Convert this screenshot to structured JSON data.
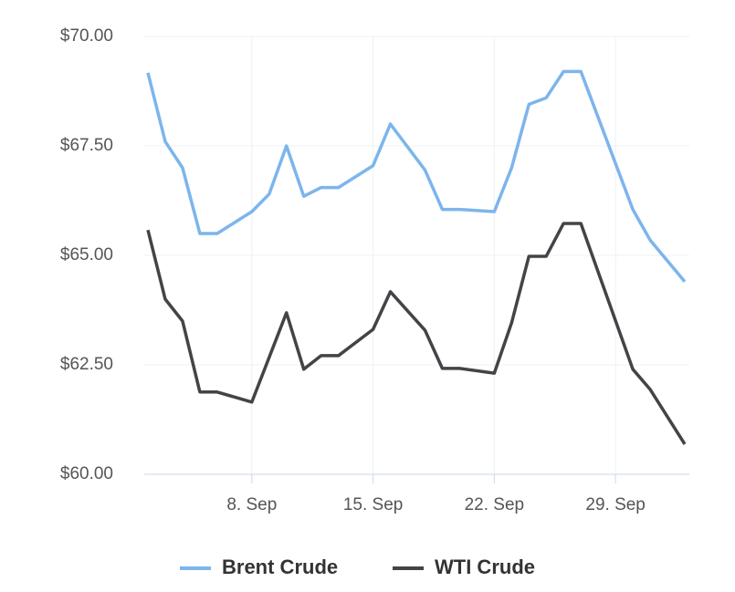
{
  "chart_data": {
    "type": "line",
    "x": [
      "2. Sep",
      "3. Sep",
      "4. Sep",
      "5. Sep",
      "6. Sep",
      "8. Sep",
      "9. Sep",
      "10. Sep",
      "11. Sep",
      "12. Sep",
      "13. Sep",
      "15. Sep",
      "16. Sep",
      "18. Sep",
      "19. Sep",
      "20. Sep",
      "22. Sep",
      "23. Sep",
      "24. Sep",
      "25. Sep",
      "26. Sep",
      "27. Sep",
      "30. Sep",
      "1. Oct",
      "3. Oct"
    ],
    "series": [
      {
        "name": "Brent Crude",
        "color": "#7cb5ec",
        "values": [
          69.17,
          67.6,
          67.0,
          65.5,
          65.5,
          66.0,
          66.4,
          67.5,
          66.35,
          66.55,
          66.55,
          67.05,
          68.0,
          66.95,
          66.05,
          66.05,
          66.0,
          67.0,
          68.45,
          68.6,
          69.2,
          69.2,
          66.05,
          65.35,
          64.4
        ]
      },
      {
        "name": "WTI Crude",
        "color": "#434348",
        "values": [
          65.58,
          64.0,
          63.5,
          61.88,
          61.88,
          61.65,
          62.67,
          63.69,
          62.4,
          62.71,
          62.71,
          63.31,
          64.17,
          63.29,
          62.42,
          62.42,
          62.31,
          63.46,
          64.98,
          64.98,
          65.73,
          65.73,
          62.4,
          61.94,
          60.69
        ]
      }
    ],
    "xlim": [
      "2. Sep",
      "3. Oct"
    ],
    "xticks": [
      "8. Sep",
      "15. Sep",
      "22. Sep",
      "29. Sep"
    ],
    "ylim": [
      60,
      70
    ],
    "yticks": [
      {
        "value": 60,
        "label": "$60.00"
      },
      {
        "value": 62.5,
        "label": "$62.50"
      },
      {
        "value": 65,
        "label": "$65.00"
      },
      {
        "value": 67.5,
        "label": "$67.50"
      },
      {
        "value": 70,
        "label": "$70.00"
      }
    ],
    "grid": true,
    "legend": "bottom"
  }
}
